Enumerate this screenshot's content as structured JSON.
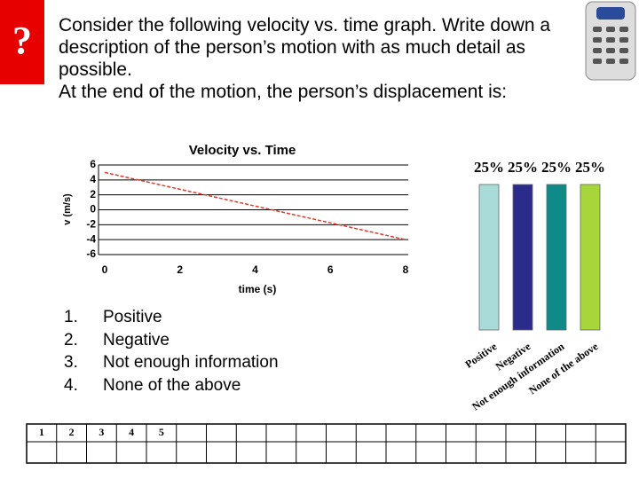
{
  "question": {
    "prompt": "Consider the following velocity vs. time graph.  Write down a description of the person’s motion with as much detail as possible.",
    "statement": "At the end of the motion, the person’s displacement is:"
  },
  "answers": [
    {
      "number": "1.",
      "text": "Positive"
    },
    {
      "number": "2.",
      "text": "Negative"
    },
    {
      "number": "3.",
      "text": "Not enough information"
    },
    {
      "number": "4.",
      "text": "None of the above"
    }
  ],
  "response_grid": [
    "1",
    "2",
    "3",
    "4",
    "5"
  ],
  "chart_data": [
    {
      "type": "line",
      "title": "Velocity vs. Time",
      "x_label": "time (s)",
      "y_label": "v (m/s)",
      "x": [
        0,
        8
      ],
      "values": [
        5,
        -4
      ],
      "color": "#e03a2a",
      "xlim": [
        0,
        8
      ],
      "xticks": [
        0,
        2,
        4,
        6,
        8
      ],
      "ylim": [
        -6,
        6
      ],
      "yticks": [
        -6,
        -4,
        -2,
        0,
        2,
        4,
        6
      ],
      "grid": true
    },
    {
      "type": "bar",
      "categories": [
        "Positive",
        "Negative",
        "Not enough information",
        "None of the above"
      ],
      "values": [
        25,
        25,
        25,
        25
      ],
      "value_labels": [
        "25%",
        "25%",
        "25%",
        "25%"
      ],
      "colors": [
        "#a9dcd8",
        "#2b2b8c",
        "#0f8a88",
        "#a6d63a"
      ]
    }
  ]
}
